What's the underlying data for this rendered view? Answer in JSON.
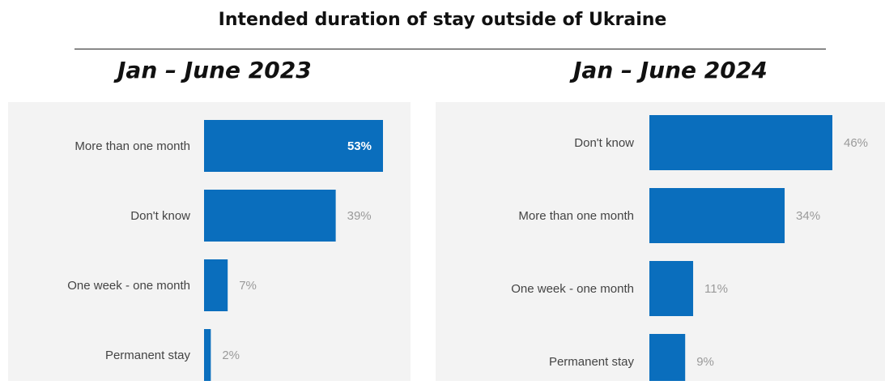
{
  "title": "Intended duration of stay outside of Ukraine",
  "colors": {
    "bar": "#0a6ebd",
    "panel_bg": "#f3f3f3",
    "label": "#444444",
    "value_outside": "#9a9a9a",
    "value_inside": "#ffffff"
  },
  "chart_data": [
    {
      "type": "bar",
      "orientation": "horizontal",
      "title": "Jan – June 2023",
      "categories": [
        "More than one month",
        "Don't know",
        "One week - one month",
        "Permanent stay"
      ],
      "values": [
        53,
        39,
        7,
        2
      ],
      "value_labels": [
        "53%",
        "39%",
        "7%",
        "2%"
      ],
      "unit": "%",
      "xlim": [
        0,
        53
      ]
    },
    {
      "type": "bar",
      "orientation": "horizontal",
      "title": "Jan – June 2024",
      "categories": [
        "Don't know",
        "More than one month",
        "One week - one month",
        "Permanent stay"
      ],
      "values": [
        46,
        34,
        11,
        9
      ],
      "value_labels": [
        "46%",
        "34%",
        "11%",
        "9%"
      ],
      "unit": "%",
      "xlim": [
        0,
        46
      ]
    }
  ]
}
